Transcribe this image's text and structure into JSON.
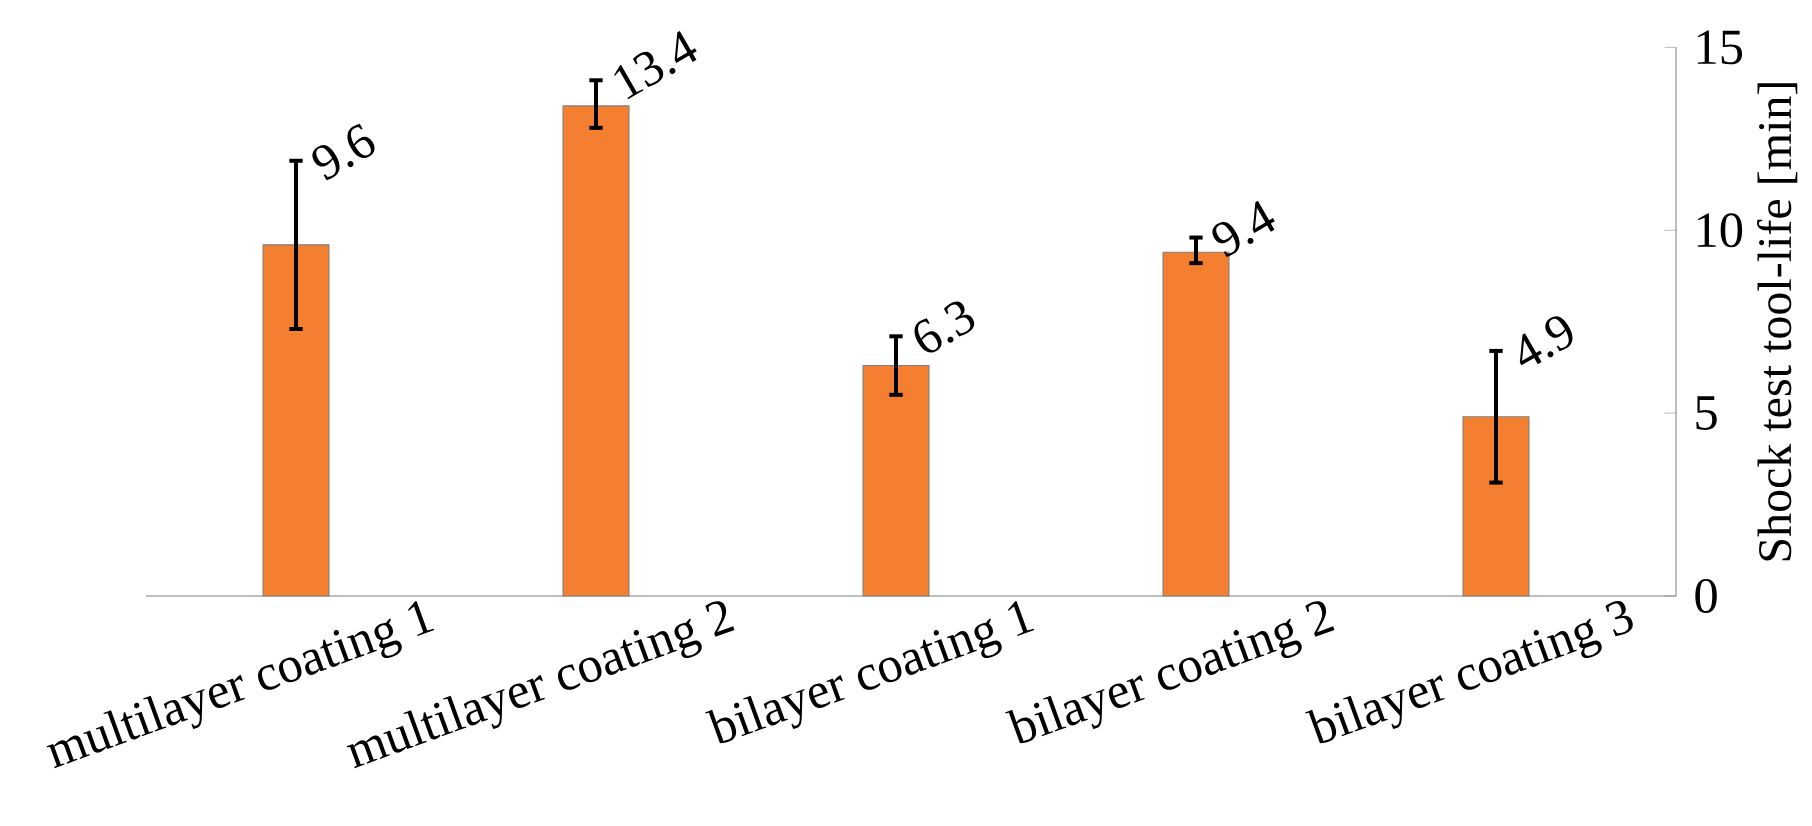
{
  "chart_data": {
    "type": "bar",
    "ylabel": "Shock test tool-life [min]",
    "categories": [
      "multilayer coating 1",
      "multilayer coating 2",
      "bilayer coating 1",
      "bilayer coating 2",
      "bilayer coating 3"
    ],
    "values": [
      9.6,
      13.4,
      6.3,
      9.4,
      4.9
    ],
    "errors": [
      [
        7.3,
        11.9
      ],
      [
        12.8,
        14.1
      ],
      [
        5.5,
        7.1
      ],
      [
        9.1,
        9.8
      ],
      [
        3.1,
        6.7
      ]
    ],
    "color": "#f47f30",
    "ylim": [
      0,
      15
    ],
    "yticks": [
      0,
      5,
      10,
      15
    ],
    "data_labels": true,
    "grid": false
  }
}
